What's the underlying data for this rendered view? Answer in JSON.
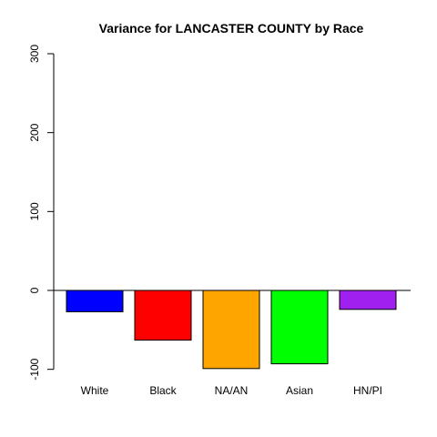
{
  "chart_data": {
    "type": "bar",
    "title": "Variance for LANCASTER COUNTY by Race",
    "xlabel": "",
    "ylabel": "",
    "categories": [
      "White",
      "Black",
      "NA/AN",
      "Asian",
      "HN/PI"
    ],
    "values": [
      -27,
      -63,
      -99,
      -93,
      -24
    ],
    "colors": [
      "#0000ff",
      "#ff0000",
      "#ffa500",
      "#00ff00",
      "#a020f0"
    ],
    "ylim": [
      -100,
      300
    ],
    "yticks": [
      -100,
      0,
      100,
      200,
      300
    ],
    "ytick_labels": [
      "-100",
      "0",
      "100",
      "200",
      "300"
    ],
    "zero_line": true,
    "grid": false,
    "legend": "none"
  }
}
